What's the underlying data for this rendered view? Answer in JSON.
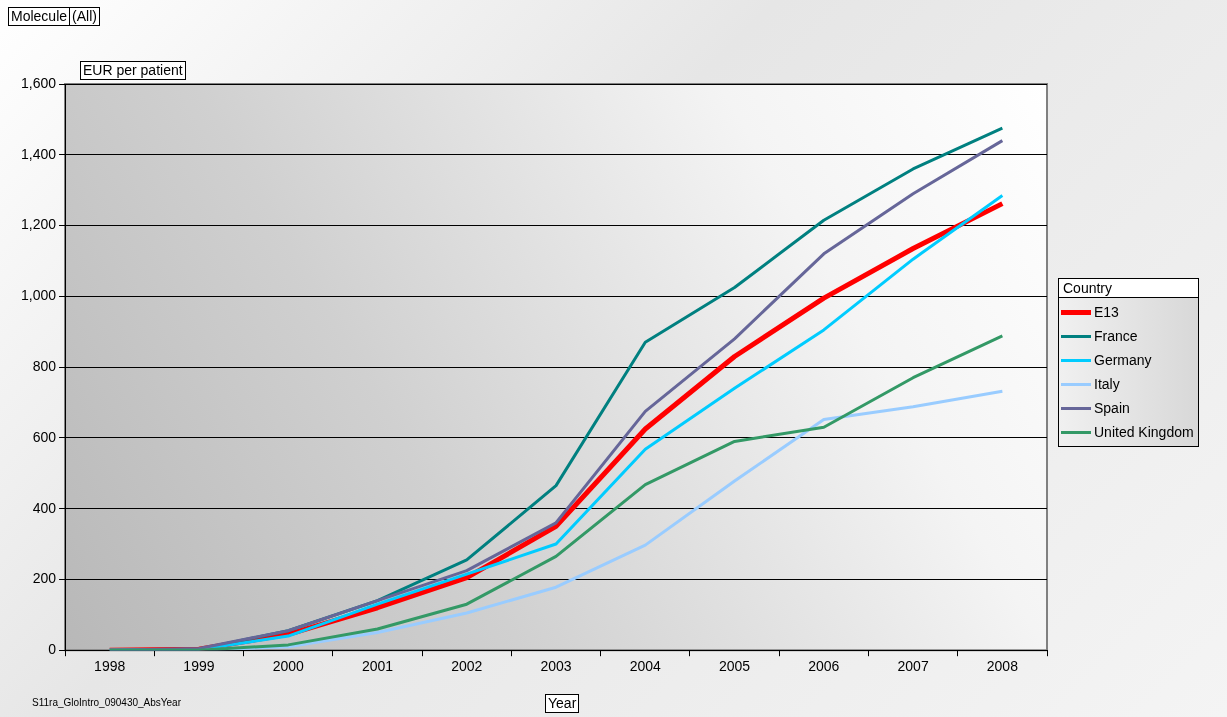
{
  "chart_data": {
    "type": "line",
    "xlabel": "Year",
    "ylabel": "EUR per patient",
    "legend_title": "Country",
    "annotations": [
      "Molecule",
      "(All)",
      "S11ra_GloIntro_090430_AbsYear"
    ],
    "categories": [
      "1998",
      "1999",
      "2000",
      "2001",
      "2002",
      "2003",
      "2004",
      "2005",
      "2006",
      "2007",
      "2008"
    ],
    "series": [
      {
        "name": "E13",
        "color": "#ff0000",
        "values": [
          0,
          3,
          45,
          120,
          205,
          350,
          625,
          830,
          995,
          1135,
          1262
        ]
      },
      {
        "name": "France",
        "color": "#008080",
        "values": [
          0,
          3,
          55,
          140,
          255,
          465,
          870,
          1025,
          1215,
          1360,
          1475
        ]
      },
      {
        "name": "Germany",
        "color": "#00ccff",
        "values": [
          0,
          2,
          40,
          130,
          215,
          300,
          568,
          740,
          905,
          1105,
          1285
        ]
      },
      {
        "name": "Italy",
        "color": "#99ccff",
        "values": [
          0,
          0,
          10,
          50,
          105,
          178,
          297,
          478,
          652,
          688,
          732
        ]
      },
      {
        "name": "Spain",
        "color": "#666699",
        "values": [
          0,
          5,
          55,
          140,
          225,
          360,
          675,
          880,
          1120,
          1290,
          1440
        ]
      },
      {
        "name": "United Kingdom",
        "color": "#339966",
        "values": [
          0,
          0,
          15,
          60,
          130,
          265,
          468,
          590,
          630,
          770,
          888
        ]
      }
    ],
    "ylim": [
      0,
      1600
    ],
    "yticks": [
      0,
      200,
      400,
      600,
      800,
      {
        "value": 1000,
        "label": "1,000"
      },
      {
        "value": 1200,
        "label": "1,200"
      },
      {
        "value": 1400,
        "label": "1,400"
      },
      {
        "value": 1600,
        "label": "1,600"
      }
    ],
    "grid": "y",
    "legend": "right",
    "marker": "none",
    "line_style": "solid"
  }
}
